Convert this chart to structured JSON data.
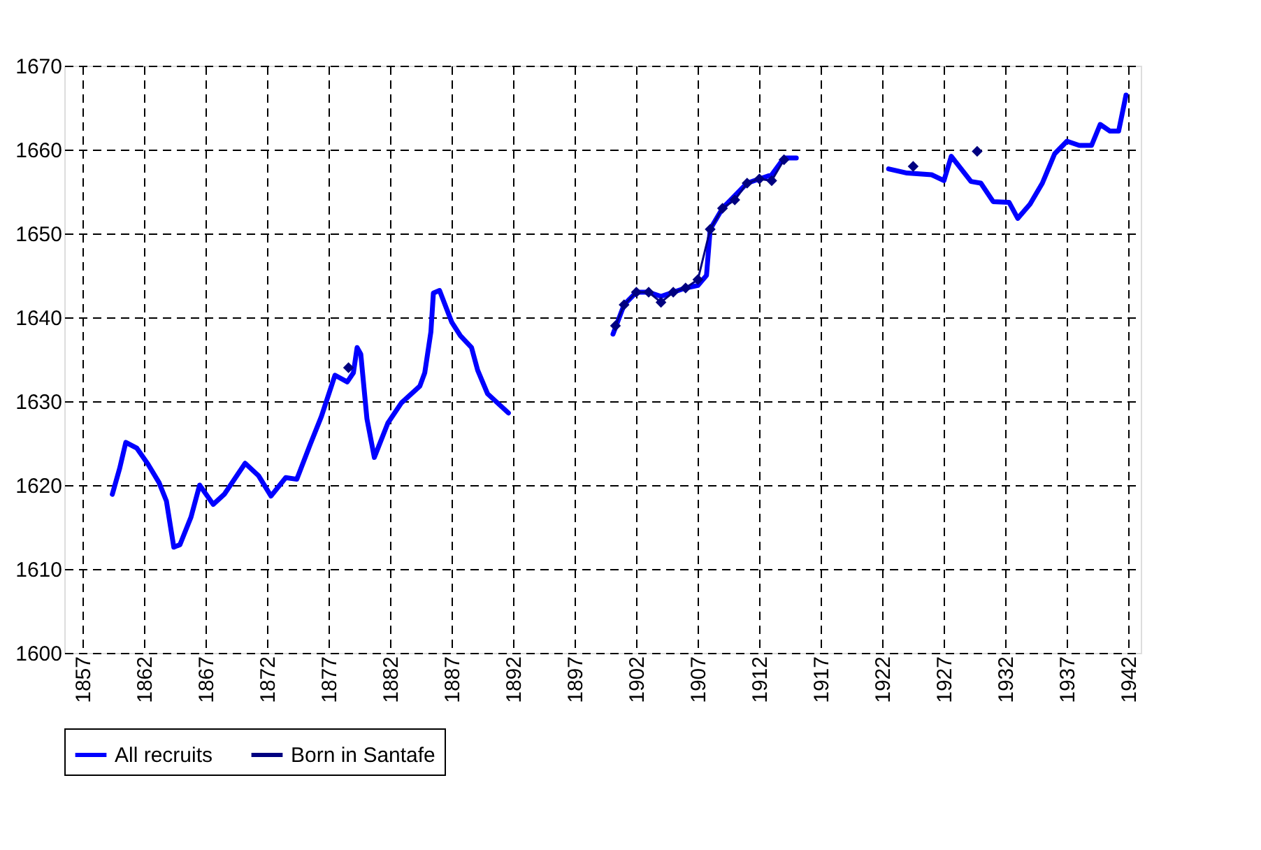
{
  "chart_data": {
    "type": "line",
    "xlim": [
      1855.5,
      1943
    ],
    "xticks": [
      1857,
      1862,
      1867,
      1872,
      1877,
      1882,
      1887,
      1892,
      1897,
      1902,
      1907,
      1912,
      1917,
      1922,
      1927,
      1932,
      1937,
      1942
    ],
    "ylim": [
      1600,
      1670
    ],
    "yticks": [
      1600,
      1610,
      1620,
      1630,
      1640,
      1650,
      1660,
      1670
    ],
    "grid": true,
    "legend": "bottom",
    "series": [
      {
        "name": "All recruits",
        "color": "#0000ff",
        "marker": "none",
        "x": [
          1859.4,
          1860.0,
          1860.5,
          1861.4,
          1862.3,
          1863.2,
          1863.8,
          1864.4,
          1864.9,
          1865.8,
          1866.5,
          1867.6,
          1868.5,
          1870.2,
          1871.3,
          1872.3,
          1873.5,
          1874.4,
          1875.5,
          1876.4,
          1877.5,
          1878.5,
          1879.0,
          1879.3,
          1879.6,
          1880.1,
          1880.7,
          1881.8,
          1882.9,
          1884.4,
          1884.8,
          1885.3,
          1885.5,
          1886.0,
          1887.0,
          1887.7,
          1888.6,
          1889.1,
          1889.9,
          1891.6,
          1895,
          1900.1,
          1901,
          1902,
          1903,
          1904,
          1905,
          1906,
          1907,
          1907.7,
          1908,
          1909,
          1910,
          1911,
          1912,
          1913,
          1914,
          1915,
          1919,
          1922.5,
          1924,
          1926,
          1927,
          1927.6,
          1929.2,
          1930,
          1931,
          1932.3,
          1933,
          1934,
          1935,
          1936,
          1937,
          1938,
          1939,
          1939.7,
          1940.5,
          1941.2,
          1941.8
        ],
        "values": [
          1618.9,
          1622.0,
          1625.1,
          1624.4,
          1622.5,
          1620.3,
          1618.1,
          1612.6,
          1612.9,
          1616.2,
          1620.0,
          1617.7,
          1618.9,
          1622.6,
          1621.1,
          1618.7,
          1620.9,
          1620.7,
          1624.9,
          1628.2,
          1633.1,
          1632.3,
          1633.4,
          1636.4,
          1635.6,
          1627.9,
          1623.3,
          1627.4,
          1629.8,
          1631.8,
          1633.4,
          1638.3,
          1642.9,
          1643.2,
          1639.4,
          1637.8,
          1636.4,
          1633.7,
          1630.9,
          1628.6,
          null,
          1638,
          1641.5,
          1643,
          1643,
          1642.5,
          1643,
          1643.5,
          1643.8,
          1645,
          1650.5,
          1653,
          1654.5,
          1656,
          1656.5,
          1657,
          1659,
          1659,
          null,
          1657.7,
          1657.2,
          1657,
          1656.3,
          1659.2,
          1656.2,
          1656,
          1653.8,
          1653.7,
          1651.8,
          1653.5,
          1656,
          1659.5,
          1661,
          1660.5,
          1660.5,
          1663,
          1662.2,
          1662.2,
          1666.5
        ]
      },
      {
        "name": "Born in Santafe",
        "color": "#000080",
        "marker": "diamond",
        "x": [
          1878.6,
          1890,
          1900.3,
          1901,
          1902,
          1903,
          1904,
          1905,
          1906,
          1907,
          1908,
          1909,
          1910,
          1911,
          1912,
          1913,
          1914,
          1920,
          1924.5,
          1927,
          1929.7
        ],
        "values": [
          1634.0,
          null,
          1639,
          1641.5,
          1643,
          1643,
          1641.8,
          1643,
          1643.5,
          1644.5,
          1650.5,
          1653,
          1654,
          1656,
          1656.5,
          1656.3,
          1658.8,
          null,
          1658,
          null,
          1659.8
        ]
      }
    ]
  }
}
